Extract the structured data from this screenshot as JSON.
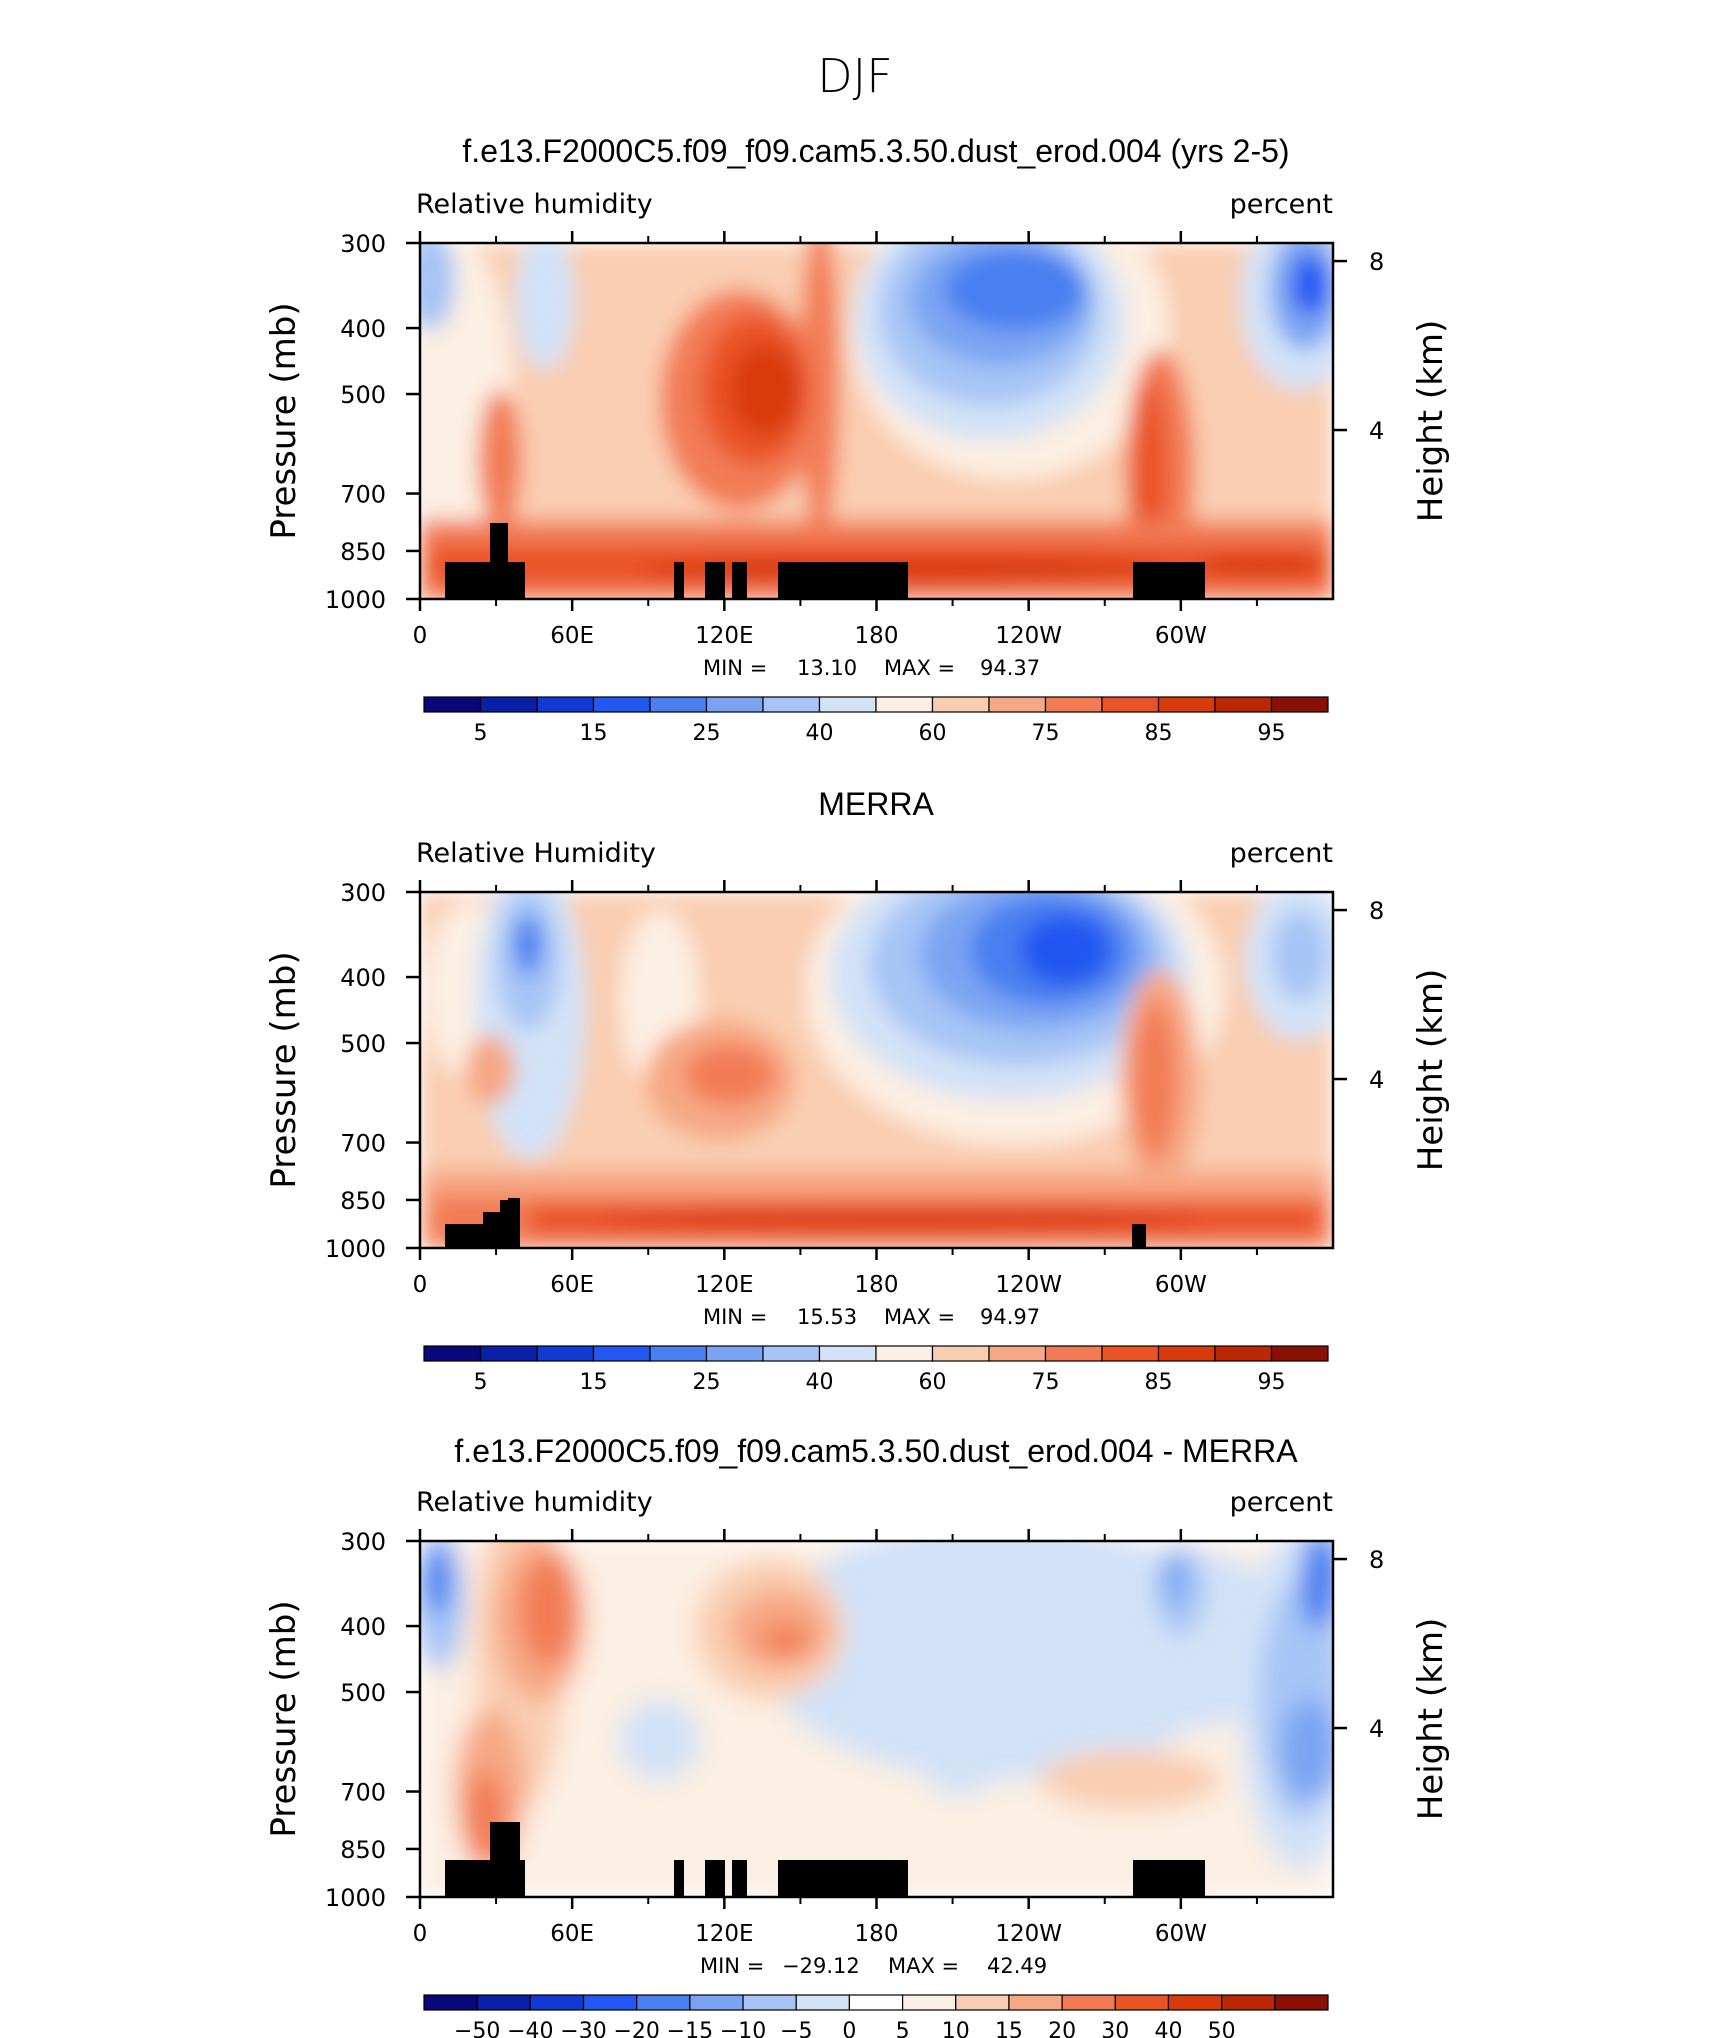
{
  "figure_title": "DJF",
  "colors": {
    "abs_levels": [
      "#08087a",
      "#0a1fa8",
      "#1039d6",
      "#2457f2",
      "#4a7ff0",
      "#7aa4f2",
      "#a6c4f5",
      "#d2e2f7",
      "#fbeee2",
      "#f9cdb1",
      "#f6a784",
      "#f27b55",
      "#ea5325",
      "#d93a0b",
      "#bb2705",
      "#8b1004"
    ],
    "diff_levels": [
      "#08087a",
      "#0a1fa8",
      "#1039d6",
      "#2457f2",
      "#4a7ff0",
      "#7aa4f2",
      "#a6c4f5",
      "#d2e2f7",
      "#ffffff",
      "#fbeee2",
      "#f9cdb1",
      "#f6a784",
      "#f27b55",
      "#ea5325",
      "#d93a0b",
      "#bb2705",
      "#8b1004"
    ],
    "topography": "#000000"
  },
  "chart_data": [
    {
      "type": "heatmap",
      "title": "f.e13.F2000C5.f09_f09.cam5.3.50.dust_erod.004 (yrs 2-5)",
      "left_label": "Relative humidity",
      "right_label": "percent",
      "ylabel": "Pressure (mb)",
      "y2label": "Height (km)",
      "x_ticks": [
        "0",
        "60E",
        "120E",
        "180",
        "120W",
        "60W"
      ],
      "y_ticks": [
        "300",
        "400",
        "500",
        "700",
        "850",
        "1000"
      ],
      "y2_ticks": [
        "8",
        "4"
      ],
      "stats": {
        "min_label": "MIN =",
        "min": "13.10",
        "max_label": "MAX =",
        "max": "94.37"
      },
      "colorbar_labels": [
        "5",
        "15",
        "25",
        "40",
        "60",
        "75",
        "85",
        "95"
      ],
      "colorbar_kind": "abs"
    },
    {
      "type": "heatmap",
      "title": "MERRA",
      "left_label": "Relative Humidity",
      "right_label": "percent",
      "ylabel": "Pressure (mb)",
      "y2label": "Height (km)",
      "x_ticks": [
        "0",
        "60E",
        "120E",
        "180",
        "120W",
        "60W"
      ],
      "y_ticks": [
        "300",
        "400",
        "500",
        "700",
        "850",
        "1000"
      ],
      "y2_ticks": [
        "8",
        "4"
      ],
      "stats": {
        "min_label": "MIN =",
        "min": "15.53",
        "max_label": "MAX =",
        "max": "94.97"
      },
      "colorbar_labels": [
        "5",
        "15",
        "25",
        "40",
        "60",
        "75",
        "85",
        "95"
      ],
      "colorbar_kind": "abs"
    },
    {
      "type": "heatmap",
      "title": "f.e13.F2000C5.f09_f09.cam5.3.50.dust_erod.004 - MERRA",
      "left_label": "Relative humidity",
      "right_label": "percent",
      "ylabel": "Pressure (mb)",
      "y2label": "Height (km)",
      "x_ticks": [
        "0",
        "60E",
        "120E",
        "180",
        "120W",
        "60W"
      ],
      "y_ticks": [
        "300",
        "400",
        "500",
        "700",
        "850",
        "1000"
      ],
      "y2_ticks": [
        "8",
        "4"
      ],
      "stats": {
        "min_label": "MIN =",
        "min": "−29.12",
        "max_label": "MAX =",
        "max": "42.49"
      },
      "colorbar_labels": [
        "−50",
        "−40",
        "−30",
        "−20",
        "−15",
        "−10",
        "−5",
        "0",
        "5",
        "10",
        "15",
        "20",
        "30",
        "40",
        "50"
      ],
      "colorbar_kind": "diff"
    }
  ]
}
